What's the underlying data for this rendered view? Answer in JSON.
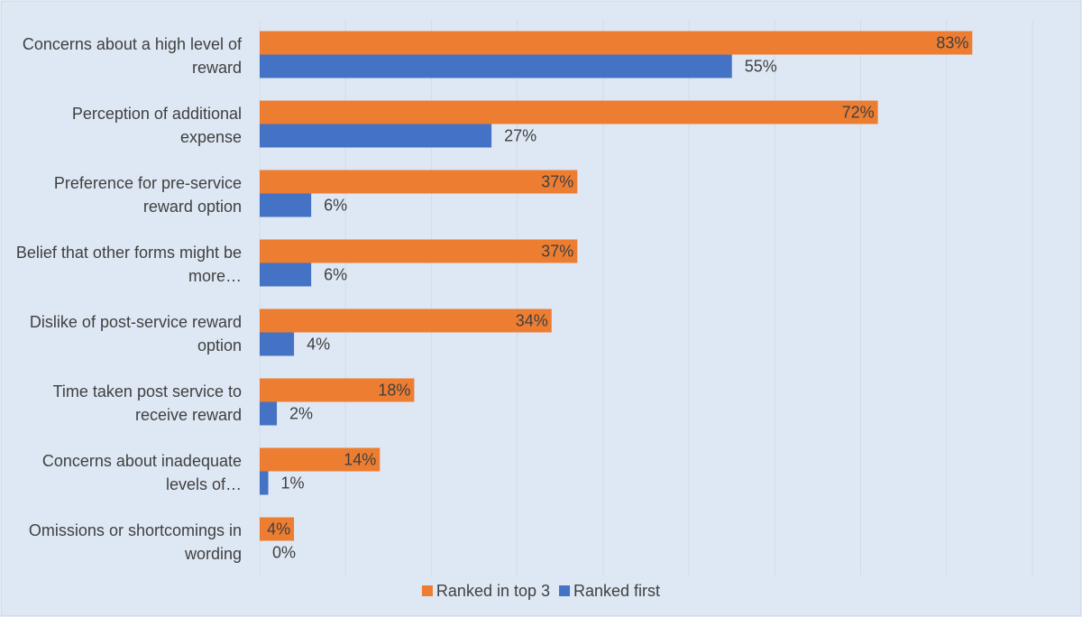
{
  "chart_data": {
    "type": "hbar",
    "categories": [
      "Concerns about a high level of reward",
      "Perception of additional expense",
      "Preference for pre-service reward option",
      "Belief that other forms might be more…",
      "Dislike of post-service reward option",
      "Time taken post service to receive reward",
      "Concerns about inadequate levels of…",
      "Omissions or shortcomings in wording"
    ],
    "series": [
      {
        "name": "Ranked in top 3",
        "color": "#ed7d31",
        "values": [
          83,
          72,
          37,
          37,
          34,
          18,
          14,
          4
        ],
        "value_labels": [
          "83%",
          "72%",
          "37%",
          "37%",
          "34%",
          "18%",
          "14%",
          "4%"
        ]
      },
      {
        "name": "Ranked first",
        "color": "#4472c4",
        "values": [
          55,
          27,
          6,
          6,
          4,
          2,
          1,
          0
        ],
        "value_labels": [
          "55%",
          "27%",
          "6%",
          "6%",
          "4%",
          "2%",
          "1%",
          "0%"
        ]
      }
    ],
    "xlim": [
      0,
      90
    ],
    "xticks": [
      0,
      10,
      20,
      30,
      40,
      50,
      60,
      70,
      80,
      90
    ],
    "grid": true,
    "legend": "bottom"
  }
}
